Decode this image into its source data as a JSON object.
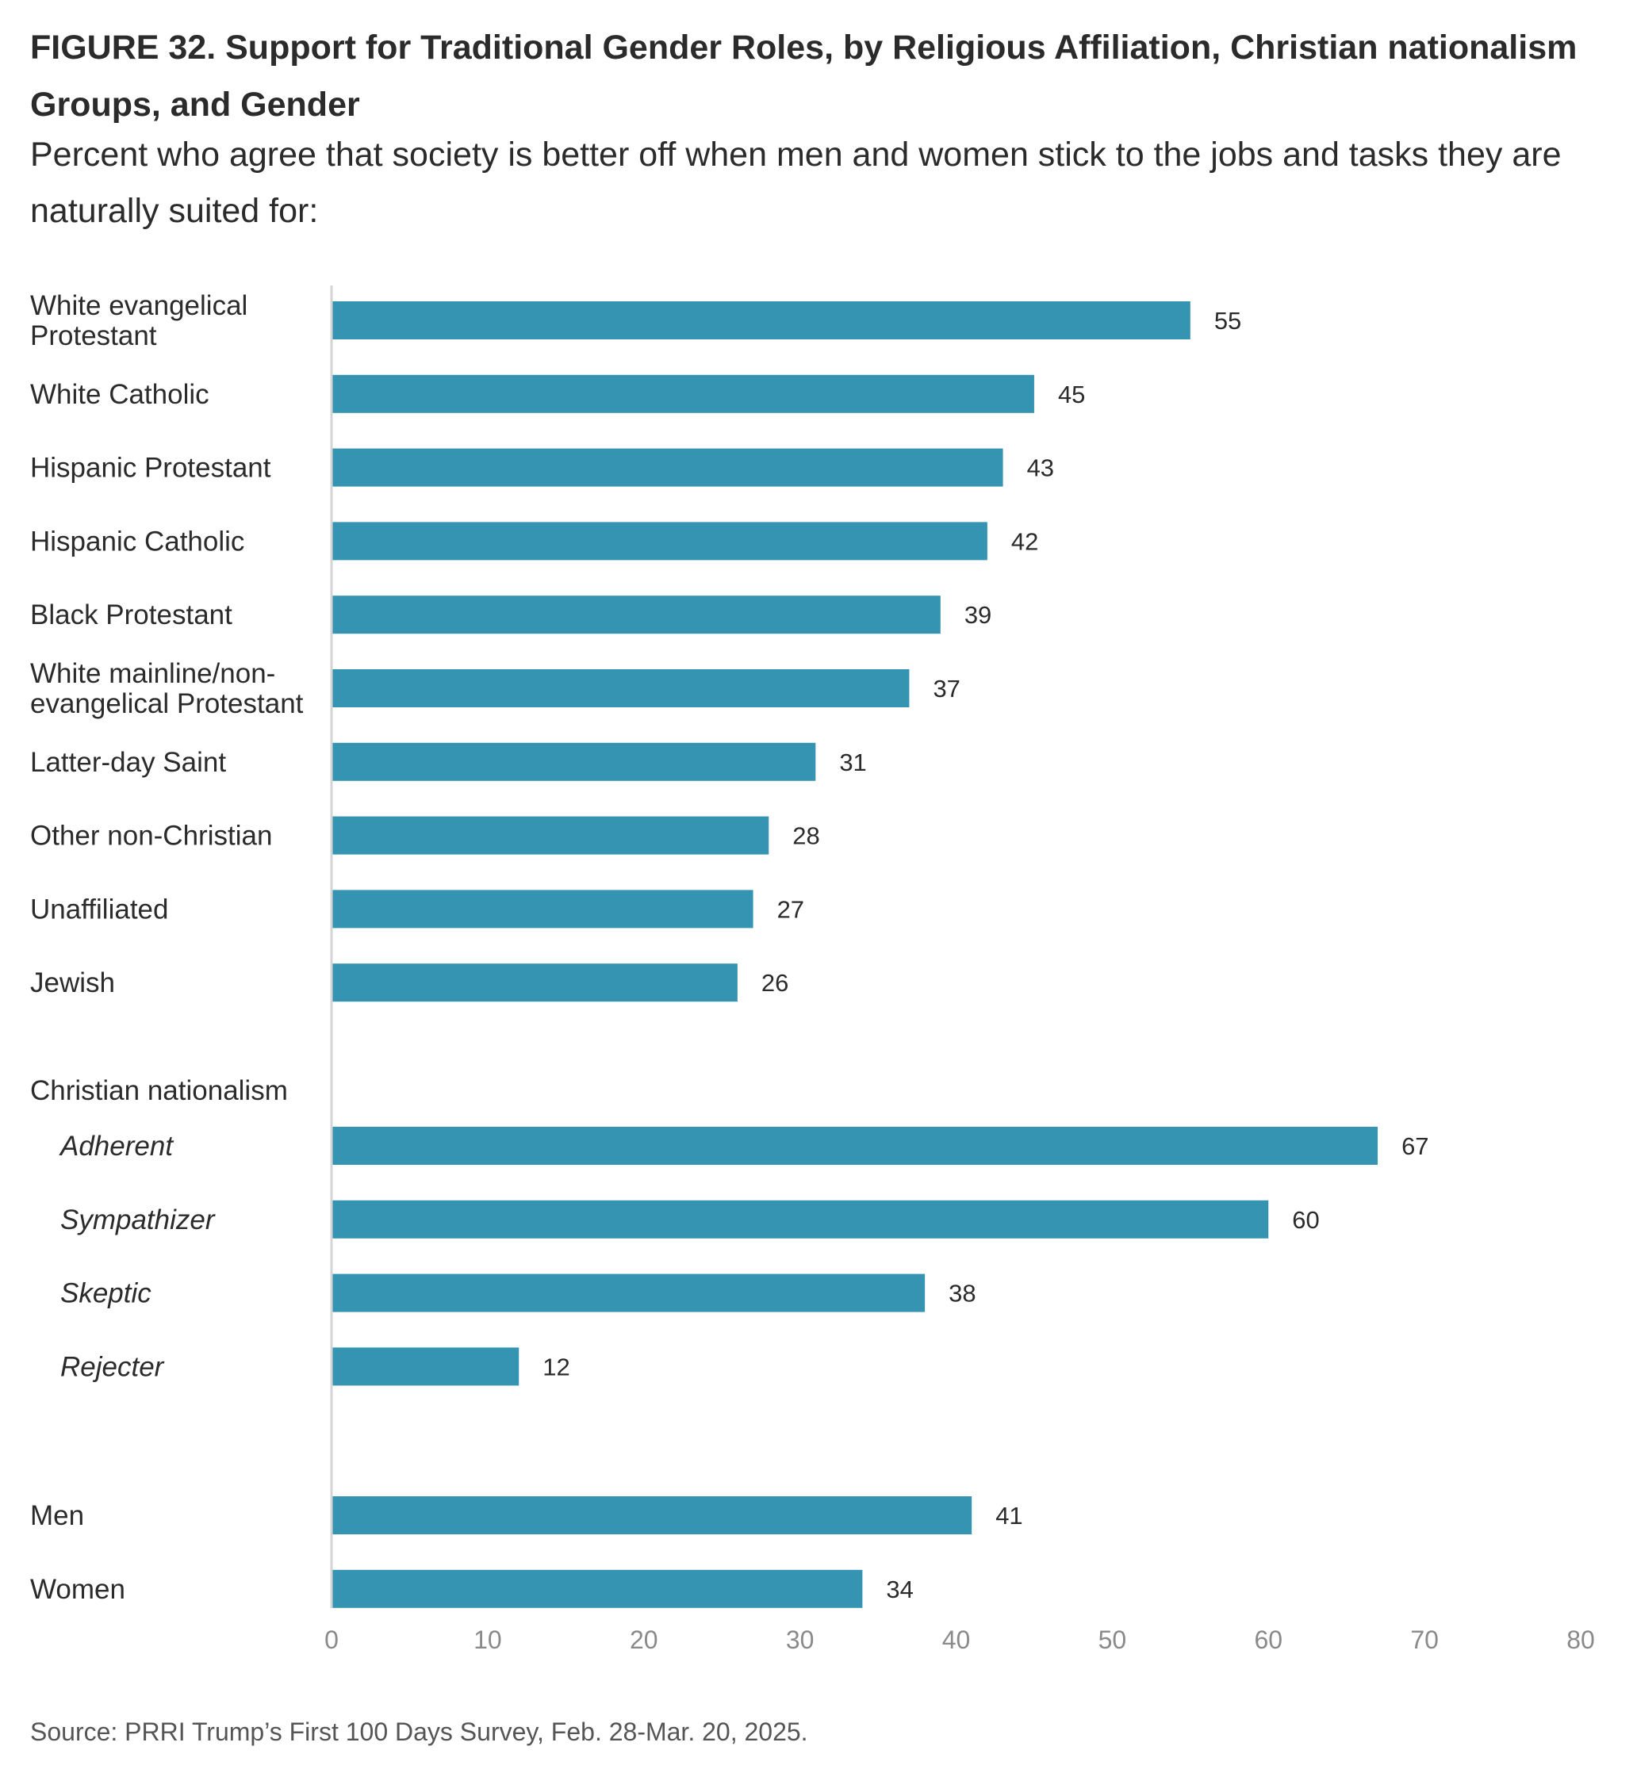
{
  "title": "FIGURE 32.  Support for Traditional Gender Roles, by Religious Affiliation, Christian nationalism Groups, and Gender",
  "subtitle": "Percent who agree that society is better off when men and women stick to the jobs and tasks they are naturally suited for:",
  "source": "Source: PRRI Trump’s First 100 Days Survey, Feb. 28-Mar. 20, 2025.",
  "colors": {
    "bar": "#3494b2",
    "axis": "#d4d4d4"
  },
  "chart_data": {
    "type": "bar",
    "orientation": "horizontal",
    "xlim": [
      0,
      80
    ],
    "ticks": [
      0,
      10,
      20,
      30,
      40,
      50,
      60,
      70,
      80
    ],
    "grid": false,
    "legend": "none",
    "groups": [
      {
        "heading": "",
        "rows": [
          {
            "label": "White evangelical Protestant",
            "value": 55
          },
          {
            "label": "White Catholic",
            "value": 45
          },
          {
            "label": "Hispanic Protestant",
            "value": 43
          },
          {
            "label": "Hispanic Catholic",
            "value": 42
          },
          {
            "label": "Black Protestant",
            "value": 39
          },
          {
            "label": "White mainline/non-evangelical Protestant",
            "value": 37
          },
          {
            "label": "Latter-day Saint",
            "value": 31
          },
          {
            "label": "Other non-Christian",
            "value": 28
          },
          {
            "label": "Unaffiliated",
            "value": 27
          },
          {
            "label": "Jewish",
            "value": 26
          }
        ]
      },
      {
        "heading": "Christian nationalism",
        "rows": [
          {
            "label": "Adherent",
            "value": 67
          },
          {
            "label": "Sympathizer",
            "value": 60
          },
          {
            "label": "Skeptic",
            "value": 38
          },
          {
            "label": "Rejecter",
            "value": 12
          }
        ]
      },
      {
        "heading": "",
        "rows": [
          {
            "label": "Men",
            "value": 41
          },
          {
            "label": "Women",
            "value": 34
          }
        ]
      }
    ]
  }
}
